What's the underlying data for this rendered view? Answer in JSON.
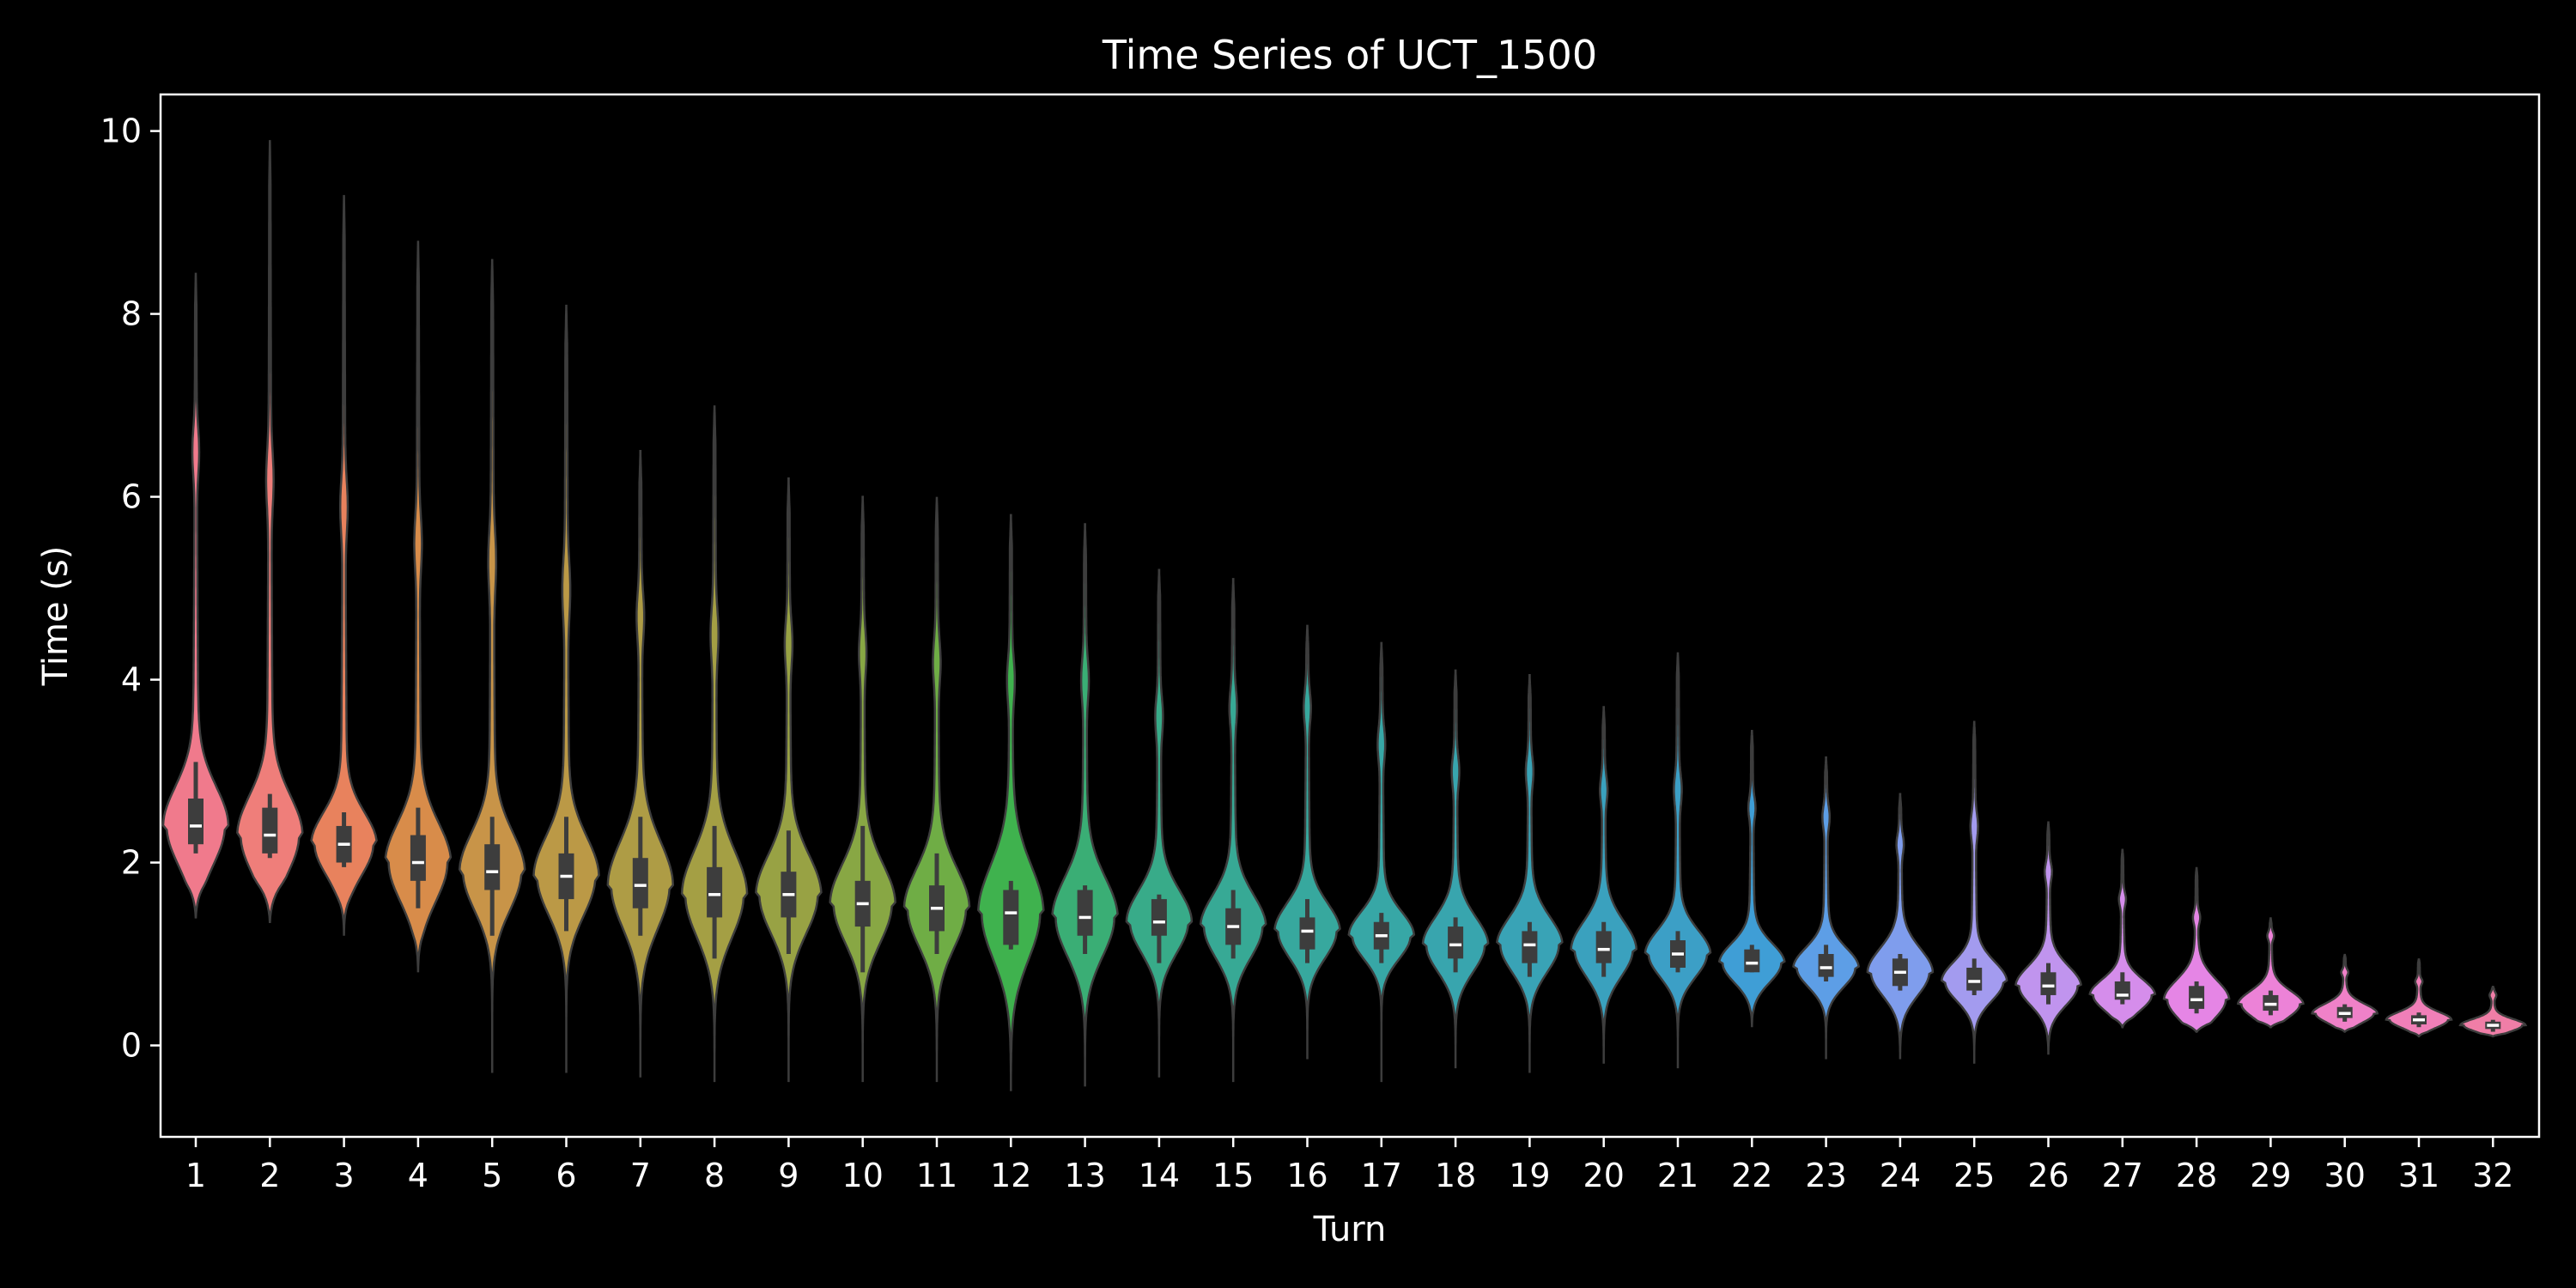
{
  "chart_data": {
    "type": "violin",
    "title": "Time Series of UCT_1500",
    "xlabel": "Turn",
    "ylabel": "Time (s)",
    "ylim": [
      -1,
      10.4
    ],
    "yticks": [
      0,
      2,
      4,
      6,
      8,
      10
    ],
    "grid": false,
    "legend": "none",
    "categories": [
      "1",
      "2",
      "3",
      "4",
      "5",
      "6",
      "7",
      "8",
      "9",
      "10",
      "11",
      "12",
      "13",
      "14",
      "15",
      "16",
      "17",
      "18",
      "19",
      "20",
      "21",
      "22",
      "23",
      "24",
      "25",
      "26",
      "27",
      "28",
      "29",
      "30",
      "31",
      "32"
    ],
    "series": [
      {
        "turn": "1",
        "color": "#f07a8c",
        "min": 1.4,
        "max": 8.45,
        "q1": 2.2,
        "median": 2.4,
        "q3": 2.7,
        "wlo": 2.1,
        "whi": 3.1,
        "bulge": 6.5
      },
      {
        "turn": "2",
        "color": "#ef7e7a",
        "min": 1.35,
        "max": 9.9,
        "q1": 2.1,
        "median": 2.3,
        "q3": 2.6,
        "wlo": 2.05,
        "whi": 2.75,
        "bulge": 6.2
      },
      {
        "turn": "3",
        "color": "#e8825d",
        "min": 1.2,
        "max": 9.3,
        "q1": 2.0,
        "median": 2.2,
        "q3": 2.4,
        "wlo": 1.95,
        "whi": 2.55,
        "bulge": 5.9
      },
      {
        "turn": "4",
        "color": "#d88c4a",
        "min": 0.8,
        "max": 8.8,
        "q1": 1.8,
        "median": 2.0,
        "q3": 2.3,
        "wlo": 1.5,
        "whi": 2.6,
        "bulge": 5.5
      },
      {
        "turn": "5",
        "color": "#c89448",
        "min": -0.3,
        "max": 8.6,
        "q1": 1.7,
        "median": 1.9,
        "q3": 2.2,
        "wlo": 1.2,
        "whi": 2.5,
        "bulge": 5.3
      },
      {
        "turn": "6",
        "color": "#bb9946",
        "min": -0.3,
        "max": 8.1,
        "q1": 1.6,
        "median": 1.85,
        "q3": 2.1,
        "wlo": 1.25,
        "whi": 2.5,
        "bulge": 5.0
      },
      {
        "turn": "7",
        "color": "#ae9c45",
        "min": -0.35,
        "max": 6.5,
        "q1": 1.5,
        "median": 1.75,
        "q3": 2.05,
        "wlo": 1.2,
        "whi": 2.5,
        "bulge": 4.7
      },
      {
        "turn": "8",
        "color": "#a49f44",
        "min": -0.4,
        "max": 7.0,
        "q1": 1.4,
        "median": 1.65,
        "q3": 1.95,
        "wlo": 0.95,
        "whi": 2.4,
        "bulge": 4.5
      },
      {
        "turn": "9",
        "color": "#98a244",
        "min": -0.4,
        "max": 6.2,
        "q1": 1.4,
        "median": 1.65,
        "q3": 1.9,
        "wlo": 1.0,
        "whi": 2.35,
        "bulge": 4.4
      },
      {
        "turn": "10",
        "color": "#88a744",
        "min": -0.4,
        "max": 6.0,
        "q1": 1.3,
        "median": 1.55,
        "q3": 1.8,
        "wlo": 0.8,
        "whi": 2.4,
        "bulge": 4.3
      },
      {
        "turn": "11",
        "color": "#6fad45",
        "min": -0.4,
        "max": 6.0,
        "q1": 1.25,
        "median": 1.5,
        "q3": 1.75,
        "wlo": 1.0,
        "whi": 2.1,
        "bulge": 4.2
      },
      {
        "turn": "12",
        "color": "#3fb24e",
        "min": -0.5,
        "max": 5.8,
        "q1": 1.1,
        "median": 1.45,
        "q3": 1.7,
        "wlo": 1.05,
        "whi": 1.8,
        "bulge": 4.0
      },
      {
        "turn": "13",
        "color": "#3aae75",
        "min": -0.45,
        "max": 5.7,
        "q1": 1.2,
        "median": 1.4,
        "q3": 1.7,
        "wlo": 1.0,
        "whi": 1.75,
        "bulge": 4.0
      },
      {
        "turn": "14",
        "color": "#38ab89",
        "min": -0.35,
        "max": 5.2,
        "q1": 1.2,
        "median": 1.35,
        "q3": 1.6,
        "wlo": 0.9,
        "whi": 1.65,
        "bulge": 3.6
      },
      {
        "turn": "15",
        "color": "#37a995",
        "min": -0.4,
        "max": 5.1,
        "q1": 1.1,
        "median": 1.3,
        "q3": 1.5,
        "wlo": 0.95,
        "whi": 1.7,
        "bulge": 3.7
      },
      {
        "turn": "16",
        "color": "#37a89e",
        "min": -0.15,
        "max": 4.6,
        "q1": 1.05,
        "median": 1.25,
        "q3": 1.4,
        "wlo": 0.9,
        "whi": 1.6,
        "bulge": 3.7
      },
      {
        "turn": "17",
        "color": "#37a7a6",
        "min": -0.4,
        "max": 4.4,
        "q1": 1.05,
        "median": 1.2,
        "q3": 1.35,
        "wlo": 0.9,
        "whi": 1.45,
        "bulge": 3.3
      },
      {
        "turn": "18",
        "color": "#38a5ae",
        "min": -0.25,
        "max": 4.1,
        "q1": 0.95,
        "median": 1.1,
        "q3": 1.3,
        "wlo": 0.8,
        "whi": 1.4,
        "bulge": 3.0
      },
      {
        "turn": "19",
        "color": "#39a3b6",
        "min": -0.3,
        "max": 4.05,
        "q1": 0.9,
        "median": 1.1,
        "q3": 1.25,
        "wlo": 0.75,
        "whi": 1.35,
        "bulge": 3.0
      },
      {
        "turn": "20",
        "color": "#3aa1be",
        "min": -0.2,
        "max": 3.7,
        "q1": 0.9,
        "median": 1.05,
        "q3": 1.25,
        "wlo": 0.75,
        "whi": 1.35,
        "bulge": 2.8
      },
      {
        "turn": "21",
        "color": "#3c9fc6",
        "min": -0.25,
        "max": 4.3,
        "q1": 0.85,
        "median": 1.0,
        "q3": 1.15,
        "wlo": 0.8,
        "whi": 1.25,
        "bulge": 2.8
      },
      {
        "turn": "22",
        "color": "#3f9ed6",
        "min": 0.2,
        "max": 3.45,
        "q1": 0.8,
        "median": 0.9,
        "q3": 1.05,
        "wlo": 0.8,
        "whi": 1.1,
        "bulge": 2.6
      },
      {
        "turn": "23",
        "color": "#5d9ee6",
        "min": -0.15,
        "max": 3.15,
        "q1": 0.75,
        "median": 0.85,
        "q3": 1.0,
        "wlo": 0.7,
        "whi": 1.1,
        "bulge": 2.5
      },
      {
        "turn": "24",
        "color": "#7f9ded",
        "min": -0.15,
        "max": 2.75,
        "q1": 0.65,
        "median": 0.8,
        "q3": 0.95,
        "wlo": 0.6,
        "whi": 1.0,
        "bulge": 2.2
      },
      {
        "turn": "25",
        "color": "#a39bef",
        "min": -0.2,
        "max": 3.55,
        "q1": 0.6,
        "median": 0.7,
        "q3": 0.85,
        "wlo": 0.55,
        "whi": 0.95,
        "bulge": 2.4
      },
      {
        "turn": "26",
        "color": "#c094ee",
        "min": -0.1,
        "max": 2.45,
        "q1": 0.55,
        "median": 0.65,
        "q3": 0.8,
        "wlo": 0.45,
        "whi": 0.9,
        "bulge": 1.9
      },
      {
        "turn": "27",
        "color": "#d58deb",
        "min": 0.2,
        "max": 2.15,
        "q1": 0.5,
        "median": 0.55,
        "q3": 0.7,
        "wlo": 0.45,
        "whi": 0.8,
        "bulge": 1.6
      },
      {
        "turn": "28",
        "color": "#e585e5",
        "min": 0.15,
        "max": 1.95,
        "q1": 0.4,
        "median": 0.5,
        "q3": 0.65,
        "wlo": 0.35,
        "whi": 0.7,
        "bulge": 1.4
      },
      {
        "turn": "29",
        "color": "#ec82d7",
        "min": 0.2,
        "max": 1.4,
        "q1": 0.38,
        "median": 0.45,
        "q3": 0.55,
        "wlo": 0.33,
        "whi": 0.6,
        "bulge": 1.2
      },
      {
        "turn": "30",
        "color": "#ef81c8",
        "min": 0.15,
        "max": 1.0,
        "q1": 0.3,
        "median": 0.35,
        "q3": 0.42,
        "wlo": 0.26,
        "whi": 0.45,
        "bulge": 0.8
      },
      {
        "turn": "31",
        "color": "#f07fb8",
        "min": 0.1,
        "max": 0.95,
        "q1": 0.23,
        "median": 0.28,
        "q3": 0.33,
        "wlo": 0.2,
        "whi": 0.36,
        "bulge": 0.7
      },
      {
        "turn": "32",
        "color": "#f07ea7",
        "min": 0.1,
        "max": 0.65,
        "q1": 0.18,
        "median": 0.22,
        "q3": 0.26,
        "wlo": 0.15,
        "whi": 0.28,
        "bulge": 0.55
      }
    ]
  }
}
